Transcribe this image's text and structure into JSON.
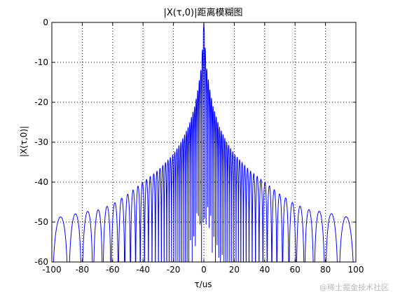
{
  "chart_data": {
    "type": "line",
    "title": "|X(τ,0)|距离模糊图",
    "xlabel": "τ/us",
    "ylabel": "|X(τ,0)|",
    "xlim": [
      -100,
      100
    ],
    "ylim": [
      -60,
      0
    ],
    "xticks": [
      -100,
      -80,
      -60,
      -40,
      -20,
      0,
      20,
      40,
      60,
      80,
      100
    ],
    "yticks": [
      0,
      -10,
      -20,
      -30,
      -40,
      -50,
      -60
    ],
    "xtick_labels": [
      "-100",
      "-80",
      "-60",
      "-40",
      "-20",
      "0",
      "20",
      "40",
      "60",
      "80",
      "100"
    ],
    "ytick_labels": [
      "0",
      "-10",
      "-20",
      "-30",
      "-40",
      "-50",
      "-60"
    ],
    "grid": true,
    "grid_style": "dotted",
    "series": [
      {
        "color": "#0000ff",
        "description": "sidelobe envelope of range ambiguity function (symmetric about 0)",
        "envelope": {
          "x": [
            0,
            1,
            2,
            4,
            6,
            10,
            15,
            20,
            30,
            40,
            50,
            60,
            70,
            80,
            90,
            100
          ],
          "y": [
            0,
            -7,
            -12,
            -17,
            -21,
            -26,
            -30,
            -33,
            -37,
            -40,
            -43,
            -45.5,
            -47,
            -47.5,
            -48.5,
            -49
          ]
        }
      }
    ]
  },
  "watermark": "@稀土掘金技术社区"
}
